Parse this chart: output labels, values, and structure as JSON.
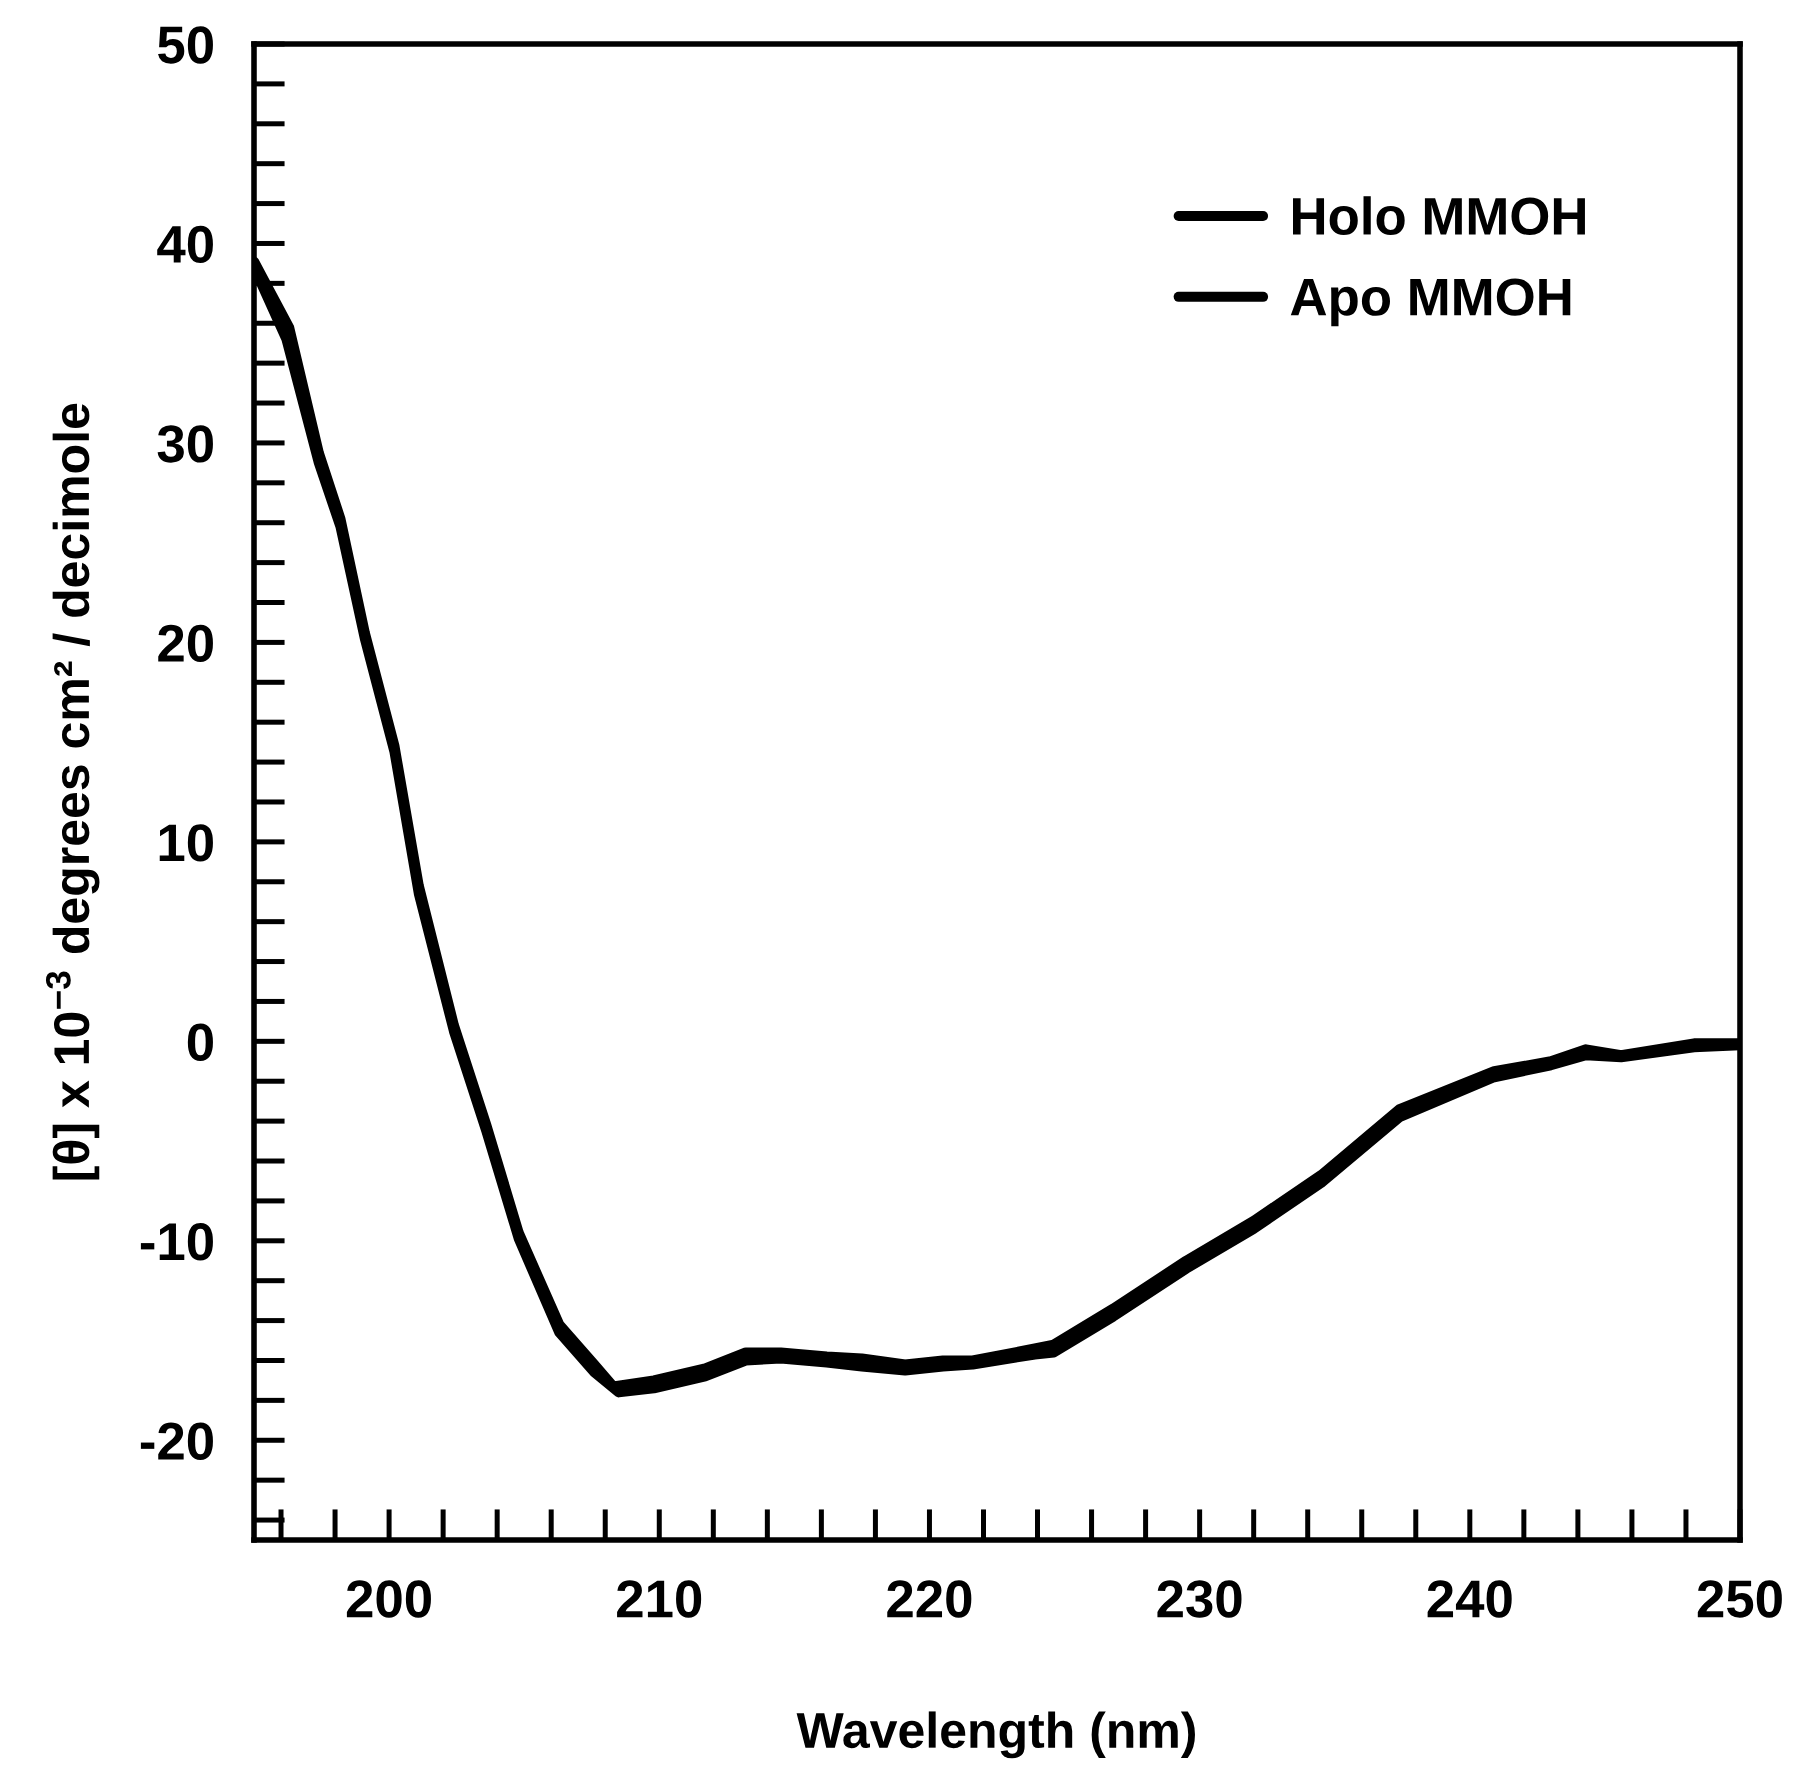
{
  "chart_data": {
    "type": "line",
    "xlabel": "Wavelength (nm)",
    "ylabel": "[θ] x 10$^{−3}$ degrees cm² / decimole",
    "xlim": [
      195,
      250
    ],
    "ylim": [
      -25,
      50
    ],
    "xticks": [
      {
        "value": 196,
        "label": null
      },
      {
        "value": 198,
        "label": null
      },
      200,
      {
        "value": 202,
        "label": null
      },
      {
        "value": 204,
        "label": null
      },
      {
        "value": 206,
        "label": null
      },
      {
        "value": 208,
        "label": null
      },
      210,
      {
        "value": 212,
        "label": null
      },
      {
        "value": 214,
        "label": null
      },
      {
        "value": 216,
        "label": null
      },
      {
        "value": 218,
        "label": null
      },
      220,
      {
        "value": 222,
        "label": null
      },
      {
        "value": 224,
        "label": null
      },
      {
        "value": 226,
        "label": null
      },
      {
        "value": 228,
        "label": null
      },
      230,
      {
        "value": 232,
        "label": null
      },
      {
        "value": 234,
        "label": null
      },
      {
        "value": 236,
        "label": null
      },
      {
        "value": 238,
        "label": null
      },
      240,
      {
        "value": 242,
        "label": null
      },
      {
        "value": 244,
        "label": null
      },
      {
        "value": 246,
        "label": null
      },
      {
        "value": 248,
        "label": null
      },
      250
    ],
    "yticks": [
      {
        "value": -24,
        "label": null
      },
      {
        "value": -22,
        "label": null
      },
      -20,
      {
        "value": -18,
        "label": null
      },
      {
        "value": -16,
        "label": null
      },
      {
        "value": -14,
        "label": null
      },
      {
        "value": -12,
        "label": null
      },
      -10,
      {
        "value": -8,
        "label": null
      },
      {
        "value": -6,
        "label": null
      },
      {
        "value": -4,
        "label": null
      },
      {
        "value": -2,
        "label": null
      },
      0,
      {
        "value": 2,
        "label": null
      },
      {
        "value": 4,
        "label": null
      },
      {
        "value": 6,
        "label": null
      },
      {
        "value": 8,
        "label": null
      },
      10,
      {
        "value": 12,
        "label": null
      },
      {
        "value": 14,
        "label": null
      },
      {
        "value": 16,
        "label": null
      },
      {
        "value": 18,
        "label": null
      },
      20,
      {
        "value": 22,
        "label": null
      },
      {
        "value": 24,
        "label": null
      },
      {
        "value": 26,
        "label": null
      },
      {
        "value": 28,
        "label": null
      },
      30,
      {
        "value": 32,
        "label": null
      },
      {
        "value": 34,
        "label": null
      },
      {
        "value": 36,
        "label": null
      },
      {
        "value": 38,
        "label": null
      },
      40,
      {
        "value": 42,
        "label": null
      },
      {
        "value": 44,
        "label": null
      },
      {
        "value": 46,
        "label": null
      },
      {
        "value": 48,
        "label": null
      },
      50
    ],
    "grid": false,
    "legend": "top right",
    "marker": "none",
    "line_style": "solid",
    "series": [
      {
        "name": "Holo MMOH",
        "color": "#000000",
        "x": [
          195,
          196.3,
          197.4,
          198.2,
          199.1,
          200.2,
          201.1,
          202.4,
          203.6,
          204.8,
          206.3,
          207.6,
          208.3,
          209.8,
          211.7,
          213.2,
          214.5,
          216.2,
          217.5,
          219.1,
          220.5,
          221.6,
          223.9,
          224.6,
          226.8,
          229.5,
          232,
          234.5,
          237.4,
          240.9,
          243.0,
          244.3,
          245.6,
          248.3,
          250
        ],
        "values": [
          39.1,
          35.8,
          29.5,
          26.2,
          20.5,
          14.8,
          7.8,
          0.8,
          -4.2,
          -9.6,
          -14.2,
          -16.2,
          -17.3,
          -17.0,
          -16.4,
          -15.6,
          -15.6,
          -15.8,
          -15.9,
          -16.2,
          -16.0,
          -16.0,
          -15.4,
          -15.2,
          -13.4,
          -11.0,
          -9.0,
          -6.7,
          -3.4,
          -1.5,
          -1.0,
          -0.4,
          -0.7,
          -0.1,
          -0.1
        ]
      },
      {
        "name": "Apo MMOH",
        "color": "#000000",
        "x": [
          195,
          196.2,
          197.4,
          198.2,
          199.1,
          200.2,
          201.1,
          202.4,
          203.6,
          204.8,
          206.3,
          207.6,
          208.5,
          209.8,
          211.7,
          213.2,
          214.5,
          216.2,
          217.5,
          219.1,
          220.5,
          221.6,
          223.9,
          224.6,
          226.8,
          229.5,
          232,
          234.5,
          237.4,
          240.9,
          243.0,
          244.3,
          245.6,
          248.3,
          250
        ],
        "values": [
          38.8,
          35.2,
          29.0,
          25.8,
          20.2,
          14.5,
          7.4,
          0.5,
          -4.5,
          -9.9,
          -14.6,
          -16.6,
          -17.6,
          -17.4,
          -16.8,
          -16.0,
          -15.9,
          -16.1,
          -16.3,
          -16.5,
          -16.3,
          -16.2,
          -15.7,
          -15.6,
          -13.8,
          -11.4,
          -9.4,
          -7.1,
          -3.8,
          -1.8,
          -1.2,
          -0.7,
          -0.8,
          -0.3,
          -0.2
        ]
      }
    ]
  }
}
